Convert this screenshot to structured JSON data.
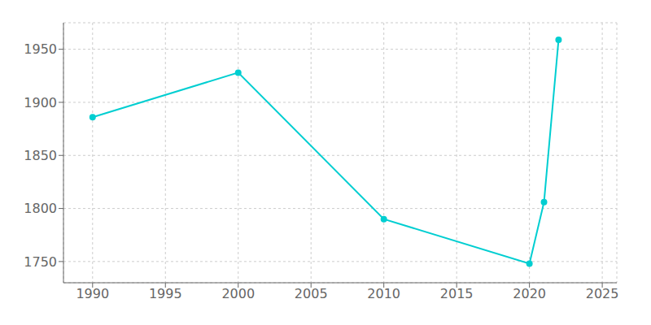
{
  "chart_data": {
    "type": "line",
    "x": [
      1990,
      2000,
      2010,
      2020,
      2021,
      2022
    ],
    "values": [
      1886,
      1928,
      1790,
      1748,
      1806,
      1959
    ],
    "color": "#00CED1",
    "marker": "circle",
    "xlim": [
      1988,
      2026
    ],
    "ylim": [
      1730,
      1975
    ],
    "xticks": [
      1990,
      1995,
      2000,
      2005,
      2010,
      2015,
      2020,
      2025
    ],
    "yticks": [
      1750,
      1800,
      1850,
      1900,
      1950
    ],
    "grid": true
  }
}
